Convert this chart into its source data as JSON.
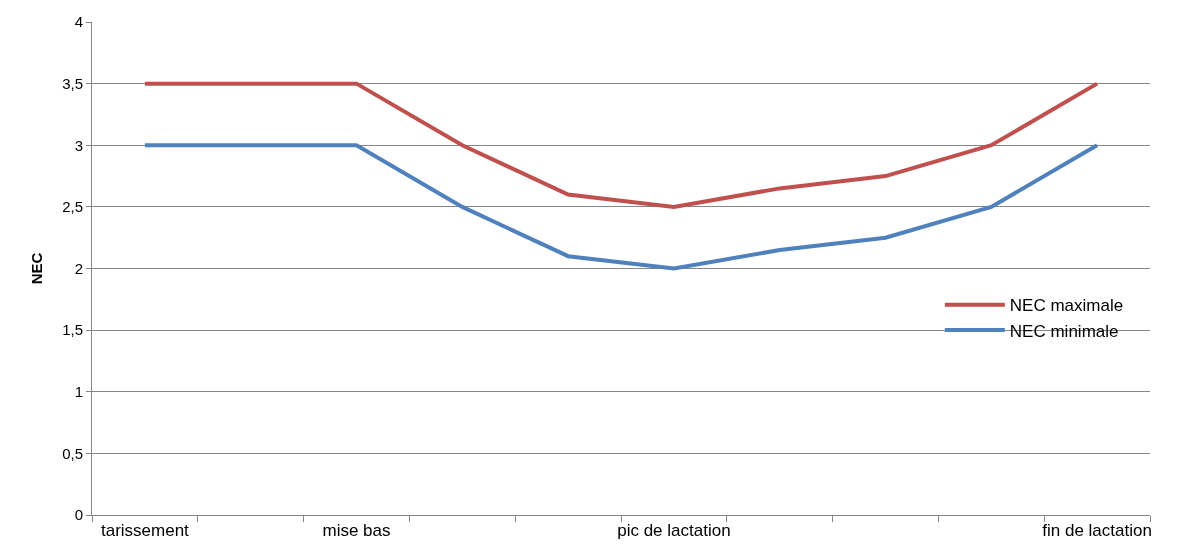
{
  "chart_data": {
    "type": "line",
    "ylabel": "NEC",
    "categories": [
      "tarissement",
      null,
      "mise bas",
      null,
      null,
      "pic de lactation",
      null,
      null,
      null,
      "fin de lactation"
    ],
    "series": [
      {
        "name": "NEC maximale",
        "color": "#c0504d",
        "values": [
          3.5,
          3.5,
          3.5,
          3.0,
          2.6,
          2.5,
          2.65,
          2.75,
          3.0,
          3.5
        ]
      },
      {
        "name": "NEC minimale",
        "color": "#4f81bd",
        "values": [
          3.0,
          3.0,
          3.0,
          2.5,
          2.1,
          2.0,
          2.15,
          2.25,
          2.5,
          3.0
        ]
      }
    ],
    "ylim": [
      0,
      4
    ],
    "yticks": [
      0,
      {
        "value": 0.5,
        "label": "0,5"
      },
      1,
      {
        "value": 1.5,
        "label": "1,5"
      },
      2,
      {
        "value": 2.5,
        "label": "2,5"
      },
      3,
      {
        "value": 3.5,
        "label": "3,5"
      },
      4
    ],
    "grid": "y",
    "legend": "right",
    "marker": "none",
    "line_style": "solid"
  }
}
